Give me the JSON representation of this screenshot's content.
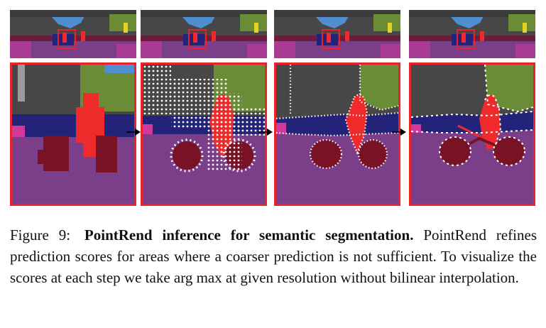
{
  "caption": {
    "label": "Figure 9:",
    "title": "PointRend inference for semantic segmentation.",
    "body_1": "PointRend refines prediction scores for areas where a coarser prediction is not sufficient. To visualize the scores at each step we take",
    "math": "arg max",
    "body_2": "at given resolution without bilinear interpolation."
  },
  "colors": {
    "sky": "#4f8fd0",
    "building": "#474747",
    "vegetation": "#6a8c36",
    "car": "#23237a",
    "person": "#ef2a2a",
    "bicycle": "#7a1226",
    "road": "#7a3f88",
    "sidewalk": "#d2379b",
    "pole": "#9c9c9c",
    "highlight_box": "#e8232c",
    "refine_points": "#ffffff"
  },
  "panels": [
    {
      "stage": "coarse"
    },
    {
      "stage": "refine-1"
    },
    {
      "stage": "refine-2"
    },
    {
      "stage": "final"
    }
  ]
}
